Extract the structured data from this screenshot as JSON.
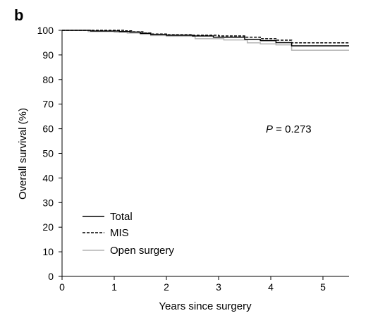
{
  "panel_label": "b",
  "chart_data": {
    "type": "line",
    "title": "",
    "xlabel": "Years since surgery",
    "ylabel": "Overall survival (%)",
    "xlim": [
      0,
      5.5
    ],
    "ylim": [
      0,
      100
    ],
    "x_ticks": [
      "0",
      "1",
      "2",
      "3",
      "4",
      "5"
    ],
    "y_ticks": [
      "0",
      "10",
      "20",
      "30",
      "40",
      "50",
      "60",
      "70",
      "80",
      "90",
      "100"
    ],
    "grid": false,
    "legend_position": "bottom-left",
    "annotation_prefix": "P",
    "annotation_value": " = 0.273",
    "series": [
      {
        "name": "Total",
        "color": "#000000",
        "style": "solid",
        "x": [
          0,
          0.55,
          1.1,
          1.3,
          1.5,
          1.7,
          2.0,
          2.5,
          2.9,
          3.5,
          3.8,
          4.1,
          4.4,
          5.5
        ],
        "y": [
          100,
          99.7,
          99.5,
          99.3,
          98.8,
          98.3,
          98.0,
          97.7,
          97.2,
          96.3,
          95.8,
          95.0,
          93.7,
          93.7
        ]
      },
      {
        "name": "MIS",
        "color": "#000000",
        "style": "dashed",
        "x": [
          0,
          0.55,
          1.2,
          1.35,
          1.55,
          1.7,
          2.0,
          2.5,
          3.0,
          3.5,
          3.8,
          4.1,
          4.4,
          5.5
        ],
        "y": [
          100,
          100,
          99.8,
          99.4,
          98.9,
          98.5,
          98.2,
          98.0,
          97.7,
          97.2,
          96.6,
          96.0,
          94.9,
          94.9
        ]
      },
      {
        "name": "Open surgery",
        "color": "#b4b4b4",
        "style": "solid",
        "x": [
          0,
          0.5,
          1.0,
          1.25,
          1.5,
          1.7,
          2.0,
          2.55,
          3.1,
          3.55,
          3.8,
          4.1,
          4.4,
          5.5
        ],
        "y": [
          100,
          99.5,
          99.2,
          98.9,
          98.4,
          97.9,
          97.6,
          96.6,
          96.1,
          94.9,
          94.5,
          94.1,
          91.9,
          91.9
        ]
      }
    ]
  }
}
